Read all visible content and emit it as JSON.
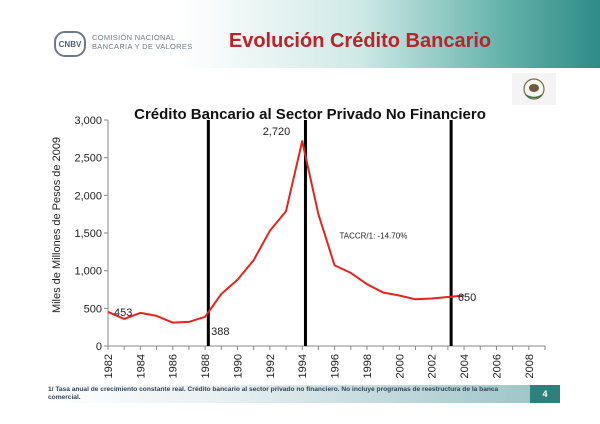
{
  "header": {
    "logo_acronym": "CNBV",
    "logo_line1": "COMISIÓN NACIONAL",
    "logo_line2": "BANCARIA Y DE VALORES",
    "slide_title": "Evolución Crédito Bancario"
  },
  "footer": {
    "note": "1/ Tasa anual de crecimiento constante real. Crédito bancario al sector privado no financiero. No incluye programas de reestructura de la banca comercial.",
    "page_number": "4"
  },
  "colors": {
    "title_red": "#c0202a",
    "line_red": "#e8221c",
    "teal": "#2f7f7c"
  },
  "chart_data": {
    "type": "line",
    "title": "Crédito Bancario al Sector Privado No Financiero",
    "ylabel": "Miles de Millones de Pesos de 2009",
    "xlabel": "",
    "ylim": [
      0,
      3000
    ],
    "xlim": [
      1982,
      2009
    ],
    "yticks": [
      "0",
      "500",
      "1,000",
      "1,500",
      "2,000",
      "2,500",
      "3,000"
    ],
    "xticks": [
      "1982",
      "1984",
      "1986",
      "1988",
      "1990",
      "1992",
      "1994",
      "1996",
      "1998",
      "2000",
      "2002",
      "2004",
      "2006",
      "2008"
    ],
    "series": [
      {
        "x": [
          1982,
          1983,
          1984,
          1985,
          1986,
          1987,
          1988,
          1989,
          1990,
          1991,
          1992,
          1993,
          1994,
          1995,
          1996,
          1997,
          1998,
          1999,
          2000,
          2001,
          2002,
          2003,
          2004
        ],
        "values": [
          453,
          360,
          440,
          400,
          310,
          320,
          388,
          690,
          880,
          1140,
          1530,
          1790,
          2720,
          1750,
          1070,
          970,
          820,
          710,
          670,
          620,
          630,
          650,
          670
        ]
      }
    ],
    "annotations": [
      {
        "text": "453",
        "x": 1982,
        "y": 453
      },
      {
        "text": "388",
        "x": 1988,
        "y": 388
      },
      {
        "text": "2,720",
        "x": 1994,
        "y": 2720
      },
      {
        "text": "650",
        "x": 2003,
        "y": 650
      }
    ],
    "note": "TACCR/1: -14.70%",
    "vlines": [
      1988.2,
      1994.2,
      2003.2
    ],
    "grid": false
  }
}
